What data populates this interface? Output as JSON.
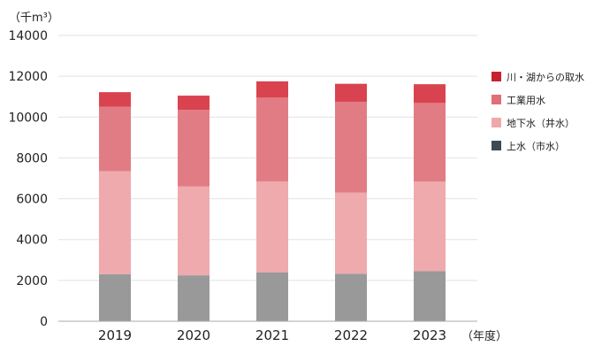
{
  "chart_data": {
    "type": "bar",
    "stacked": true,
    "unit_label": "（千m³）",
    "xlabel": "（年度）",
    "categories": [
      "2019",
      "2020",
      "2021",
      "2022",
      "2023"
    ],
    "ylim": [
      0,
      14000
    ],
    "yticks": [
      "0",
      "2000",
      "4000",
      "6000",
      "8000",
      "10000",
      "12000",
      "14000"
    ],
    "grid": true,
    "legend_position": "right",
    "series": [
      {
        "name": "上水（市水）",
        "color": "#999999",
        "values": [
          2300,
          2250,
          2400,
          2330,
          2450
        ]
      },
      {
        "name": "地下水（井水）",
        "color": "#eeaaad",
        "values": [
          5050,
          4350,
          4450,
          3970,
          4390
        ]
      },
      {
        "name": "工業用水",
        "color": "#e27c84",
        "values": [
          3150,
          3750,
          4100,
          4450,
          3850
        ]
      },
      {
        "name": "川・湖からの取水",
        "color": "#d9434f",
        "values": [
          720,
          700,
          800,
          880,
          920
        ]
      }
    ],
    "legend": [
      {
        "name": "川・湖からの取水",
        "swatch": "#c8202c"
      },
      {
        "name": "工業用水",
        "swatch": "#e06f78"
      },
      {
        "name": "地下水（井水）",
        "swatch": "#f0a8ab"
      },
      {
        "name": "上水（市水）",
        "swatch": "#3c4a55"
      }
    ]
  }
}
